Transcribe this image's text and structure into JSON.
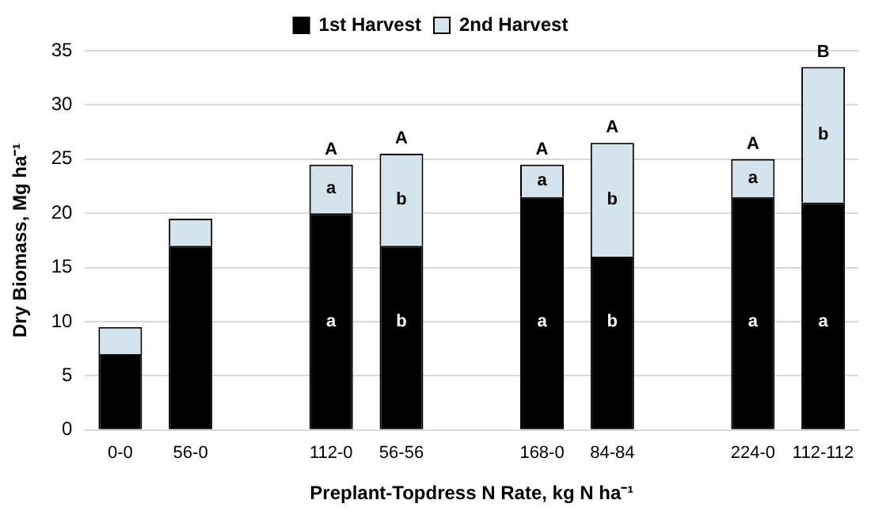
{
  "chart_data": {
    "type": "bar",
    "stacked": true,
    "categories": [
      "0-0",
      "56-0",
      null,
      "112-0",
      "56-56",
      null,
      "168-0",
      "84-84",
      null,
      "224-0",
      "112-112"
    ],
    "series": [
      {
        "name": "1st Harvest",
        "color": "#000000",
        "values": [
          7,
          17,
          null,
          20,
          17,
          null,
          21.5,
          16,
          null,
          21.5,
          21
        ],
        "value_labels": [
          null,
          null,
          null,
          "a",
          "b",
          null,
          "a",
          "b",
          null,
          "a",
          "a"
        ]
      },
      {
        "name": "2nd Harvest",
        "color": "#d3e4ec",
        "values": [
          2.5,
          2.5,
          null,
          4.5,
          8.5,
          null,
          3,
          10.5,
          null,
          3.5,
          12.5
        ],
        "value_labels": [
          null,
          null,
          null,
          "a",
          "b",
          null,
          "a",
          "b",
          null,
          "a",
          "b"
        ]
      }
    ],
    "xlabel": "Preplant-Topdress N Rate, kg N ha⁻¹",
    "ylabel": "Dry Biomass, Mg ha⁻¹",
    "ylim": [
      0,
      35
    ],
    "yticks": [
      0,
      5,
      10,
      15,
      20,
      25,
      30,
      35
    ],
    "grid": "y",
    "legend": "top",
    "annotations": [
      {
        "text": "A",
        "x": "112-0",
        "y": 24.5
      },
      {
        "text": "A",
        "x": "56-56",
        "y": 25.5
      },
      {
        "text": "A",
        "x": "168-0",
        "y": 24.5
      },
      {
        "text": "A",
        "x": "84-84",
        "y": 26.5
      },
      {
        "text": "A",
        "x": "224-0",
        "y": 25
      },
      {
        "text": "B",
        "x": "112-112",
        "y": 33.5
      }
    ]
  }
}
